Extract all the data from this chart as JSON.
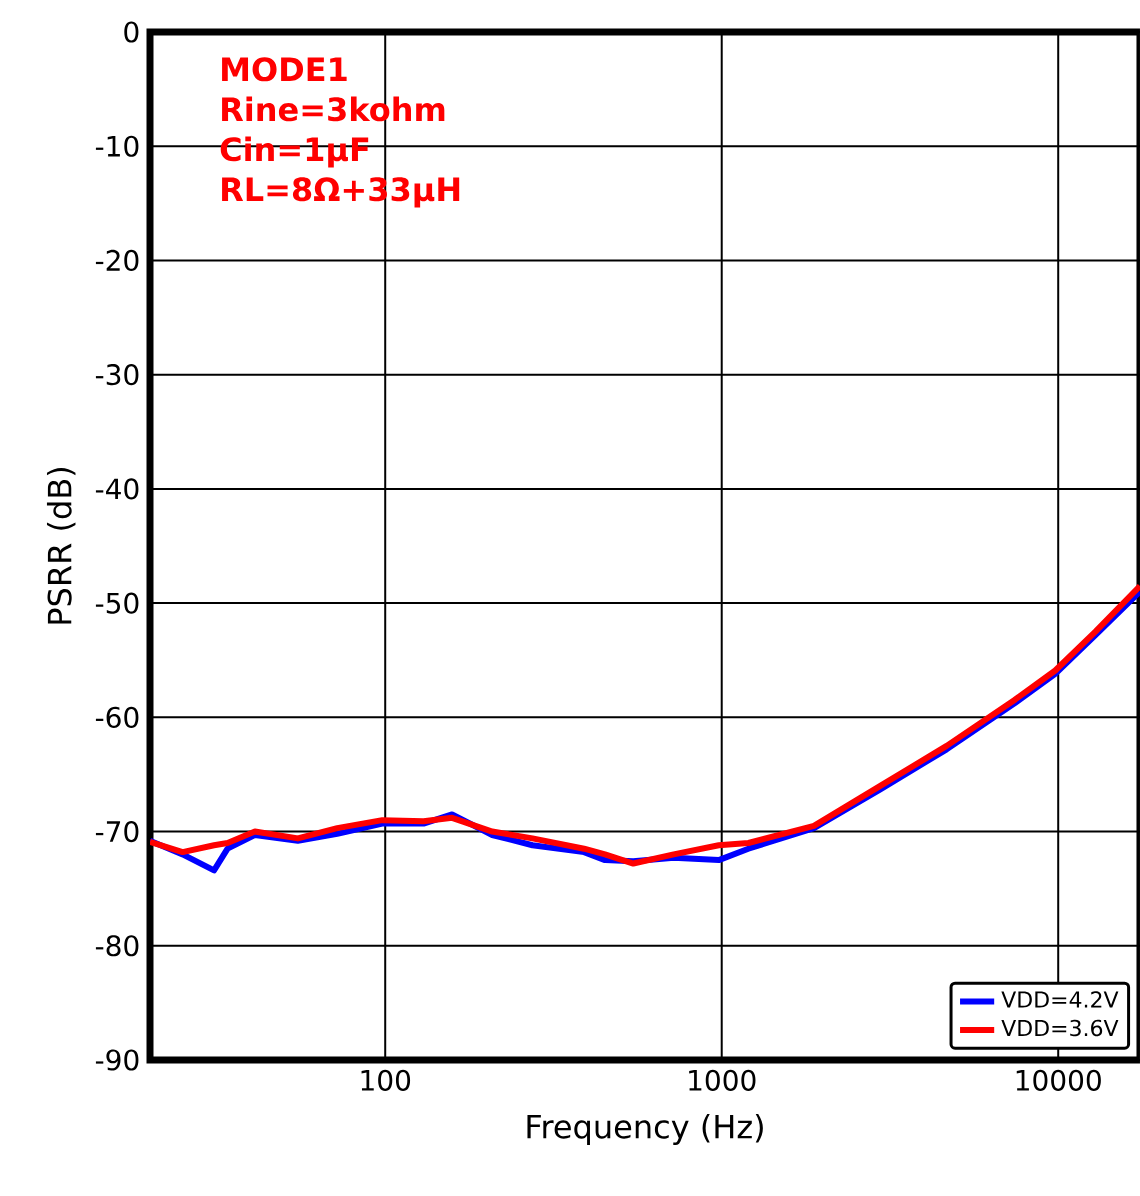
{
  "chart_data": {
    "type": "line",
    "xlabel": "Frequency (Hz)",
    "ylabel": "PSRR (dB)",
    "log": "x",
    "grid": true,
    "legend": "bottom right",
    "line_style": "solid",
    "marker": "none",
    "annotations": [
      "MODE1",
      "Rine=3kohm",
      "Cin=1µF",
      "RL=8Ω+33µH"
    ],
    "xlim": [
      20,
      17500
    ],
    "ylim": [
      -90,
      0
    ],
    "xticks": [
      100,
      1000,
      10000
    ],
    "yticks": [
      -90,
      -80,
      -70,
      -60,
      -50,
      -40,
      -30,
      -20,
      -10,
      0
    ],
    "series": [
      {
        "name": "VDD=4.2V",
        "color": "#0000ff",
        "x": [
          20,
          25,
          31,
          34,
          41,
          55,
          72,
          98,
          130,
          158,
          208,
          274,
          390,
          450,
          546,
          720,
          980,
          1200,
          1880,
          2960,
          4660,
          7400,
          9800,
          12900,
          17500
        ],
        "values": [
          -70.8,
          -72,
          -73.4,
          -71.5,
          -70.3,
          -70.8,
          -70.2,
          -69.3,
          -69.3,
          -68.5,
          -70.3,
          -71.2,
          -71.8,
          -72.5,
          -72.6,
          -72.3,
          -72.5,
          -71.5,
          -69.7,
          -66.3,
          -62.8,
          -58.8,
          -56.2,
          -52.8,
          -49
        ]
      },
      {
        "name": "VDD=3.6V",
        "color": "#ff0000",
        "x": [
          20,
          25,
          31,
          34,
          41,
          55,
          72,
          98,
          130,
          158,
          208,
          274,
          390,
          450,
          546,
          720,
          980,
          1200,
          1880,
          2960,
          4660,
          7400,
          9800,
          12900,
          17500
        ],
        "values": [
          -70.9,
          -71.8,
          -71.2,
          -71,
          -70,
          -70.6,
          -69.7,
          -69,
          -69.1,
          -68.8,
          -70,
          -70.6,
          -71.5,
          -72,
          -72.8,
          -72,
          -71.2,
          -71,
          -69.5,
          -66,
          -62.5,
          -58.5,
          -55.9,
          -52.5,
          -48.5
        ]
      }
    ]
  }
}
